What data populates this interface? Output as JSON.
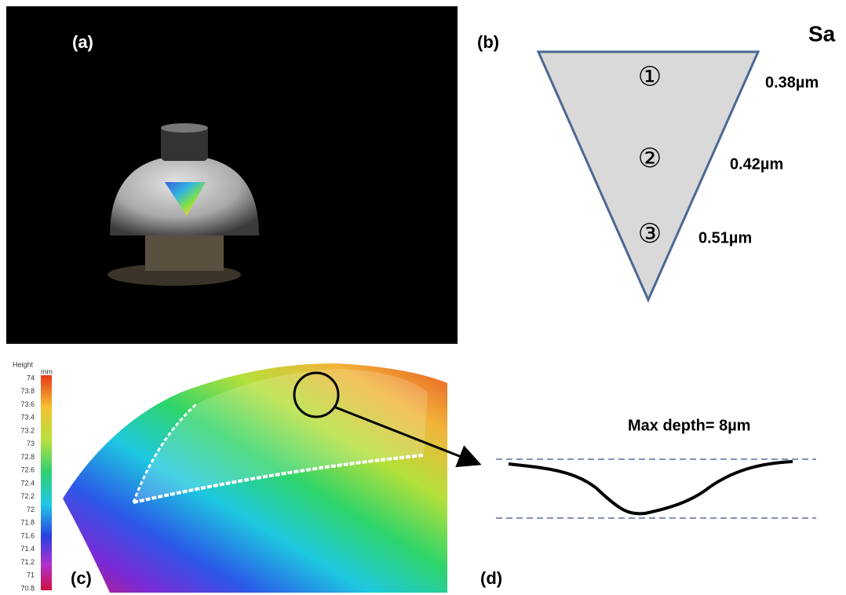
{
  "panel_a": {
    "label": "(a)"
  },
  "panel_b": {
    "label": "(b)",
    "heading": "Sa",
    "regions": [
      {
        "marker": "①",
        "value": "0.38µm"
      },
      {
        "marker": "②",
        "value": "0.42µm"
      },
      {
        "marker": "③",
        "value": "0.51µm"
      }
    ]
  },
  "panel_c": {
    "label": "(c)",
    "colorbar_title": "Height",
    "colorbar_unit": "mm",
    "colorbar_labels": [
      "74",
      "73.8",
      "73.6",
      "73.4",
      "73.2",
      "73",
      "72.8",
      "72.6",
      "72.4",
      "72.2",
      "72",
      "71.8",
      "71.6",
      "71.4",
      "71.2",
      "71",
      "70.8"
    ]
  },
  "panel_d": {
    "label": "(d)",
    "annotation": "Max depth= 8µm"
  }
}
